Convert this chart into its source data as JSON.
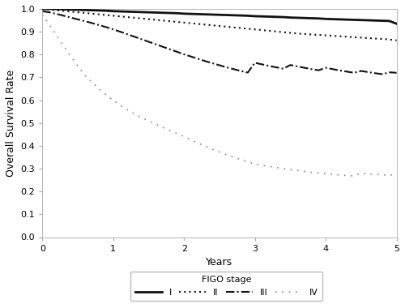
{
  "title": "",
  "xlabel": "Years",
  "ylabel": "Overall Survival Rate",
  "xlim": [
    0,
    5
  ],
  "ylim": [
    0.0,
    1.0
  ],
  "yticks": [
    0.0,
    0.1,
    0.2,
    0.3,
    0.4,
    0.5,
    0.6,
    0.7,
    0.8,
    0.9,
    1.0
  ],
  "xticks": [
    0,
    1,
    2,
    3,
    4,
    5
  ],
  "stage_I_x": [
    0.0,
    0.1,
    0.2,
    0.3,
    0.4,
    0.5,
    0.6,
    0.7,
    0.8,
    0.9,
    1.0,
    1.1,
    1.2,
    1.3,
    1.4,
    1.5,
    1.6,
    1.7,
    1.8,
    1.9,
    2.0,
    2.1,
    2.2,
    2.3,
    2.4,
    2.5,
    2.6,
    2.7,
    2.8,
    2.9,
    3.0,
    3.1,
    3.2,
    3.3,
    3.4,
    3.5,
    3.6,
    3.7,
    3.8,
    3.9,
    4.0,
    4.1,
    4.2,
    4.3,
    4.4,
    4.5,
    4.6,
    4.7,
    4.8,
    4.9,
    5.0
  ],
  "stage_I_y": [
    1.0,
    1.0,
    0.999,
    0.998,
    0.997,
    0.996,
    0.995,
    0.994,
    0.993,
    0.992,
    0.99,
    0.989,
    0.988,
    0.987,
    0.986,
    0.985,
    0.984,
    0.983,
    0.982,
    0.981,
    0.979,
    0.978,
    0.977,
    0.976,
    0.975,
    0.974,
    0.973,
    0.972,
    0.971,
    0.97,
    0.968,
    0.967,
    0.966,
    0.965,
    0.964,
    0.962,
    0.961,
    0.96,
    0.959,
    0.958,
    0.956,
    0.955,
    0.954,
    0.953,
    0.952,
    0.951,
    0.95,
    0.949,
    0.948,
    0.947,
    0.935
  ],
  "stage_II_x": [
    0.0,
    0.1,
    0.2,
    0.3,
    0.4,
    0.5,
    0.6,
    0.7,
    0.8,
    0.9,
    1.0,
    1.1,
    1.2,
    1.3,
    1.4,
    1.5,
    1.6,
    1.7,
    1.8,
    1.9,
    2.0,
    2.1,
    2.2,
    2.3,
    2.4,
    2.5,
    2.6,
    2.7,
    2.8,
    2.9,
    3.0,
    3.1,
    3.2,
    3.3,
    3.4,
    3.5,
    3.6,
    3.7,
    3.8,
    3.9,
    4.0,
    4.1,
    4.2,
    4.3,
    4.4,
    4.5,
    4.6,
    4.7,
    4.8,
    4.9,
    5.0
  ],
  "stage_II_y": [
    1.0,
    0.997,
    0.994,
    0.991,
    0.988,
    0.985,
    0.982,
    0.979,
    0.976,
    0.973,
    0.97,
    0.967,
    0.964,
    0.961,
    0.958,
    0.955,
    0.952,
    0.949,
    0.946,
    0.943,
    0.94,
    0.937,
    0.934,
    0.931,
    0.928,
    0.925,
    0.922,
    0.919,
    0.916,
    0.913,
    0.91,
    0.907,
    0.904,
    0.901,
    0.898,
    0.895,
    0.892,
    0.89,
    0.888,
    0.886,
    0.884,
    0.882,
    0.88,
    0.878,
    0.876,
    0.874,
    0.872,
    0.87,
    0.868,
    0.866,
    0.862
  ],
  "stage_III_x": [
    0.0,
    0.1,
    0.2,
    0.3,
    0.4,
    0.5,
    0.6,
    0.7,
    0.8,
    0.9,
    1.0,
    1.1,
    1.2,
    1.3,
    1.4,
    1.5,
    1.6,
    1.7,
    1.8,
    1.9,
    2.0,
    2.1,
    2.2,
    2.3,
    2.4,
    2.5,
    2.6,
    2.7,
    2.8,
    2.9,
    3.0,
    3.1,
    3.2,
    3.3,
    3.4,
    3.5,
    3.6,
    3.7,
    3.8,
    3.9,
    4.0,
    4.1,
    4.2,
    4.3,
    4.4,
    4.5,
    4.6,
    4.7,
    4.8,
    4.9,
    5.0
  ],
  "stage_III_y": [
    0.99,
    0.985,
    0.978,
    0.97,
    0.962,
    0.954,
    0.946,
    0.938,
    0.929,
    0.92,
    0.91,
    0.9,
    0.889,
    0.878,
    0.867,
    0.856,
    0.845,
    0.834,
    0.823,
    0.812,
    0.801,
    0.791,
    0.781,
    0.771,
    0.762,
    0.753,
    0.744,
    0.736,
    0.728,
    0.721,
    0.764,
    0.757,
    0.75,
    0.744,
    0.738,
    0.754,
    0.748,
    0.742,
    0.736,
    0.731,
    0.742,
    0.736,
    0.73,
    0.725,
    0.72,
    0.728,
    0.723,
    0.718,
    0.714,
    0.722,
    0.72
  ],
  "stage_IV_x": [
    0.0,
    0.1,
    0.2,
    0.3,
    0.4,
    0.5,
    0.6,
    0.7,
    0.8,
    0.9,
    1.0,
    1.1,
    1.2,
    1.3,
    1.4,
    1.5,
    1.6,
    1.7,
    1.8,
    1.9,
    2.0,
    2.1,
    2.2,
    2.3,
    2.4,
    2.5,
    2.6,
    2.7,
    2.8,
    2.9,
    3.0,
    3.1,
    3.2,
    3.3,
    3.4,
    3.5,
    3.6,
    3.7,
    3.8,
    3.9,
    4.0,
    4.1,
    4.2,
    4.3,
    4.4,
    4.5,
    4.6,
    4.7,
    4.8,
    4.9,
    5.0
  ],
  "stage_IV_y": [
    0.975,
    0.93,
    0.884,
    0.838,
    0.793,
    0.75,
    0.71,
    0.678,
    0.65,
    0.624,
    0.6,
    0.577,
    0.558,
    0.54,
    0.524,
    0.509,
    0.495,
    0.481,
    0.467,
    0.454,
    0.441,
    0.426,
    0.412,
    0.398,
    0.385,
    0.373,
    0.361,
    0.35,
    0.34,
    0.33,
    0.32,
    0.315,
    0.31,
    0.305,
    0.3,
    0.296,
    0.292,
    0.288,
    0.284,
    0.281,
    0.278,
    0.275,
    0.272,
    0.27,
    0.268,
    0.28,
    0.277,
    0.275,
    0.273,
    0.271,
    0.275
  ],
  "legend_title": "FIGO stage",
  "background_color": "#ffffff",
  "font_color": "#000000",
  "spine_color": "#aaaaaa",
  "color_dark": "#111111",
  "color_gray": "#888888"
}
